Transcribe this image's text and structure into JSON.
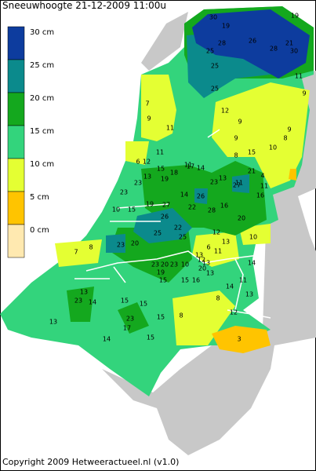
{
  "title": "Sneeuwhoogte 21-12-2009 11:00u",
  "legend": [
    {
      "label": "30 cm",
      "color": "#0d3c9e"
    },
    {
      "label": "25 cm",
      "color": "#0b8a8c"
    },
    {
      "label": "20 cm",
      "color": "#14a81e"
    },
    {
      "label": "15 cm",
      "color": "#33d47c"
    },
    {
      "label": "10 cm",
      "color": "#e4ff33"
    },
    {
      "label": "5 cm",
      "color": "#ffc400"
    },
    {
      "label": "0 cm",
      "color": "#ffe9b0"
    }
  ],
  "station_values": [
    "30",
    "19",
    "19",
    "28",
    "26",
    "21",
    "28",
    "30",
    "25",
    "25",
    "11",
    "25",
    "9",
    "7",
    "12",
    "9",
    "9",
    "9",
    "11",
    "9",
    "8",
    "10",
    "11",
    "15",
    "8",
    "6",
    "12",
    "11",
    "17",
    "14",
    "15",
    "18",
    "21",
    "4",
    "13",
    "13",
    "19",
    "23",
    "11",
    "27",
    "11",
    "23",
    "23",
    "14",
    "26",
    "16",
    "27",
    "22",
    "19",
    "10",
    "15",
    "28",
    "16",
    "26",
    "20",
    "25",
    "22",
    "25",
    "12",
    "20",
    "23",
    "7",
    "8",
    "10",
    "6",
    "11",
    "13",
    "13",
    "12",
    "14",
    "23",
    "20",
    "23",
    "19",
    "10",
    "13",
    "20",
    "15",
    "15",
    "16",
    "13",
    "11",
    "14",
    "13",
    "13",
    "8",
    "23",
    "14",
    "15",
    "12",
    "15",
    "8",
    "23",
    "17",
    "15",
    "13",
    "3",
    "14",
    "15"
  ],
  "copyright": "Copyright 2009 Hetweeractueel.nl (v1.0)"
}
